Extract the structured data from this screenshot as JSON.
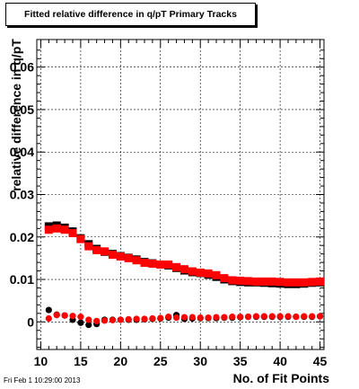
{
  "chart_data": {
    "type": "scatter",
    "title": "Fitted relative difference in q/pT Primary Tracks",
    "xlabel": "No. of Fit Points",
    "ylabel": "relative difference in q/pT",
    "xlim": [
      9.5,
      45.5
    ],
    "ylim": [
      -0.0065,
      0.0665
    ],
    "x_ticks": [
      "10",
      "15",
      "20",
      "25",
      "30",
      "35",
      "40",
      "45"
    ],
    "y_ticks": [
      "0",
      "0.01",
      "0.02",
      "0.03",
      "0.04",
      "0.05",
      "0.06"
    ],
    "grid": true,
    "x": [
      11,
      12,
      13,
      14,
      15,
      16,
      17,
      18,
      19,
      20,
      21,
      22,
      23,
      24,
      25,
      26,
      27,
      28,
      29,
      30,
      31,
      32,
      33,
      34,
      35,
      36,
      37,
      38,
      39,
      40,
      41,
      42,
      43,
      44,
      45
    ],
    "series": [
      {
        "color": "#000000",
        "marker": "circle",
        "values": [
          0.0028,
          0.0017,
          0.0015,
          0.0005,
          -0.0002,
          -0.0007,
          -0.0005,
          0.0005,
          0.0005,
          0.0005,
          0.0005,
          0.0005,
          0.0006,
          0.0007,
          0.0008,
          0.001,
          0.0016,
          0.0007,
          0.0008,
          0.0009,
          0.0009,
          0.0009,
          0.001,
          0.001,
          0.0011,
          0.0012,
          0.0012,
          0.0012,
          0.0012,
          0.0012,
          0.0012,
          0.0012,
          0.0012,
          0.0012,
          0.0013
        ]
      },
      {
        "color": "#ff0000",
        "marker": "circle",
        "values": [
          0.0008,
          0.0016,
          0.0015,
          0.0014,
          0.0012,
          0.0005,
          0.0002,
          0.0003,
          0.0004,
          0.0005,
          0.0006,
          0.0007,
          0.0007,
          0.0008,
          0.0009,
          0.0012,
          0.001,
          0.0011,
          0.0011,
          0.001,
          0.001,
          0.0011,
          0.0011,
          0.0012,
          0.0012,
          0.0012,
          0.0013,
          0.0013,
          0.0013,
          0.0013,
          0.0013,
          0.0012,
          0.0013,
          0.0013,
          0.0013
        ]
      },
      {
        "color": "#000000",
        "marker": "square",
        "values": [
          0.0225,
          0.0227,
          0.0222,
          0.0213,
          0.0197,
          0.0183,
          0.0172,
          0.0165,
          0.016,
          0.0155,
          0.0151,
          0.0147,
          0.0141,
          0.0138,
          0.0135,
          0.0133,
          0.0127,
          0.0121,
          0.0117,
          0.0115,
          0.0111,
          0.0106,
          0.01,
          0.0096,
          0.0094,
          0.0093,
          0.0093,
          0.0092,
          0.0091,
          0.009,
          0.0089,
          0.0089,
          0.009,
          0.0092,
          0.0093
        ]
      },
      {
        "color": "#ff0000",
        "marker": "square",
        "values": [
          0.0217,
          0.022,
          0.0217,
          0.0209,
          0.0195,
          0.0178,
          0.0169,
          0.0166,
          0.0158,
          0.0154,
          0.015,
          0.0145,
          0.0139,
          0.0137,
          0.0135,
          0.0135,
          0.0129,
          0.0124,
          0.0119,
          0.0116,
          0.0114,
          0.011,
          0.0103,
          0.0098,
          0.0097,
          0.0096,
          0.0095,
          0.0095,
          0.0095,
          0.0094,
          0.0093,
          0.0093,
          0.0093,
          0.0094,
          0.0095
        ]
      }
    ]
  },
  "timestamp": "Fri Feb  1 10:29:00 2013"
}
